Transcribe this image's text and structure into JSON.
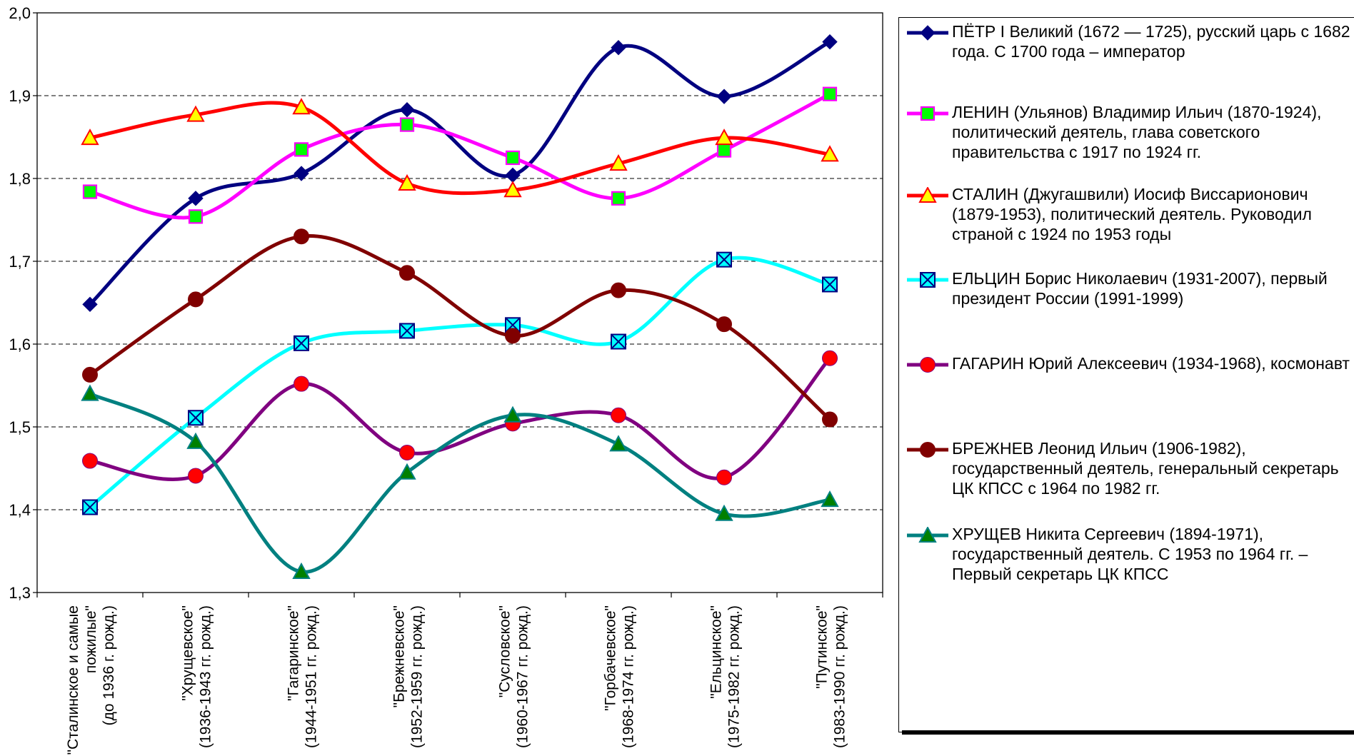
{
  "chart_data": {
    "type": "line",
    "categories": [
      [
        "\"Сталинское и самые",
        "пожилые\"",
        "(до 1936 г. рожд.)"
      ],
      [
        "\"Хрущевское\"",
        "(1936-1943 гг. рожд.)"
      ],
      [
        "\"Гагаринское\"",
        "(1944-1951 гг. рожд.)"
      ],
      [
        "\"Брежневское\"",
        "(1952-1959 гг. рожд.)"
      ],
      [
        "\"Сусловское\"",
        "(1960-1967 гг. рожд.)"
      ],
      [
        "\"Горбачевское\"",
        "(1968-1974 гг. рожд.)"
      ],
      [
        "\"Ельцинское\"",
        "(1975-1982 гг. рожд.)"
      ],
      [
        "\"Путинское\"",
        "(1983-1990 гг. рожд.)"
      ]
    ],
    "ylim": [
      1.3,
      2.0
    ],
    "yticks": [
      "1,3",
      "1,4",
      "1,5",
      "1,6",
      "1,7",
      "1,8",
      "1,9",
      "2,0"
    ],
    "grid": "horizontal dashed",
    "smooth": true,
    "legend_position": "right",
    "series": [
      {
        "name": "ПЁТР I Великий (1672 — 1725), русский царь с 1682 года. С 1700 года – император",
        "color": "#000080",
        "marker": "diamond",
        "marker_fill": "#000080",
        "values": [
          1.648,
          1.776,
          1.806,
          1.883,
          1.804,
          1.958,
          1.899,
          1.965
        ]
      },
      {
        "name": "ЛЕНИН (Ульянов) Владимир Ильич (1870-1924), политический деятель, глава советского правительства с 1917 по 1924 гг.",
        "color": "#FF00FF",
        "marker": "square",
        "marker_fill": "#00FF00",
        "values": [
          1.784,
          1.754,
          1.835,
          1.865,
          1.825,
          1.776,
          1.834,
          1.902
        ]
      },
      {
        "name": "СТАЛИН (Джугашвили) Иосиф Виссарионович (1879-1953), политический деятель. Руководил страной с 1924 по 1953 годы",
        "color": "#FF0000",
        "marker": "triangle",
        "marker_fill": "#FFFF00",
        "values": [
          1.849,
          1.877,
          1.886,
          1.794,
          1.786,
          1.818,
          1.849,
          1.829
        ]
      },
      {
        "name": "ЕЛЬЦИН Борис Николаевич (1931-2007), первый президент России (1991-1999)",
        "color": "#00FFFF",
        "marker": "xsquare",
        "marker_fill": "#00FFFF",
        "values": [
          1.403,
          1.511,
          1.601,
          1.616,
          1.623,
          1.603,
          1.702,
          1.672
        ]
      },
      {
        "name": "ГАГАРИН Юрий Алексеевич (1934-1968), космонавт",
        "color": "#800080",
        "marker": "circle",
        "marker_fill": "#FF0000",
        "values": [
          1.459,
          1.441,
          1.552,
          1.469,
          1.504,
          1.514,
          1.439,
          1.583
        ]
      },
      {
        "name": "БРЕЖНЕВ Леонид Ильич (1906-1982), государственный деятель, генеральный секретарь ЦК КПСС с 1964 по 1982 гг.",
        "color": "#800000",
        "marker": "circle",
        "marker_fill": "#800000",
        "values": [
          1.563,
          1.654,
          1.73,
          1.686,
          1.61,
          1.665,
          1.624,
          1.509
        ]
      },
      {
        "name": "ХРУЩЕВ Никита Сергеевич (1894-1971), государственный деятель. С 1953 по 1964 гг. – Первый секретарь ЦК КПСС",
        "color": "#008080",
        "marker": "triangle",
        "marker_fill": "#008000",
        "values": [
          1.54,
          1.482,
          1.325,
          1.445,
          1.514,
          1.479,
          1.395,
          1.412
        ]
      }
    ]
  }
}
